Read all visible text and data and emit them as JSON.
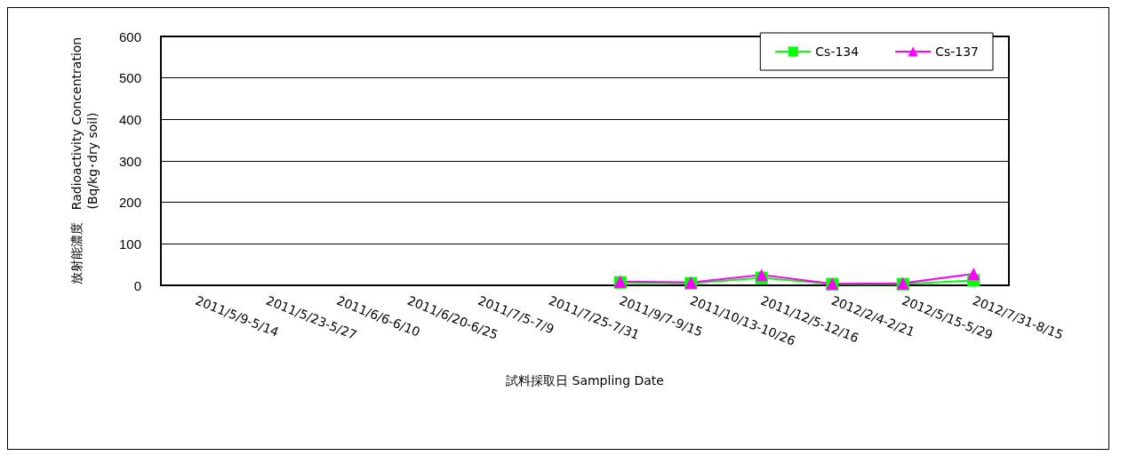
{
  "chart_data": {
    "type": "line",
    "xlabel": "試料採取日 Sampling Date",
    "ylabel": "放射能濃度　Radioactivity Concentration\n(Bq/kg･dry soil)",
    "categories": [
      "2011/5/9-5/14",
      "2011/5/23-5/27",
      "2011/6/6-6/10",
      "2011/6/20-6/25",
      "2011/7/5-7/9",
      "2011/7/25-7/31",
      "2011/9/7-9/15",
      "2011/10/13-10/26",
      "2011/12/5-12/16",
      "2012/2/4-2/21",
      "2012/5/15-5/29",
      "2012/7/31-8/15"
    ],
    "series": [
      {
        "name": "Cs-134",
        "color": "#00ff00",
        "marker": "square",
        "values": [
          null,
          null,
          null,
          null,
          null,
          null,
          7,
          5,
          18,
          3,
          3,
          12
        ]
      },
      {
        "name": "Cs-137",
        "color": "#ff00ff",
        "marker": "triangle",
        "values": [
          null,
          null,
          null,
          null,
          null,
          null,
          9,
          7,
          25,
          4,
          5,
          28
        ]
      }
    ],
    "ylim": [
      0,
      600
    ],
    "yticks": [
      0,
      100,
      200,
      300,
      400,
      500,
      600
    ],
    "grid": "y",
    "legend": "top right"
  }
}
